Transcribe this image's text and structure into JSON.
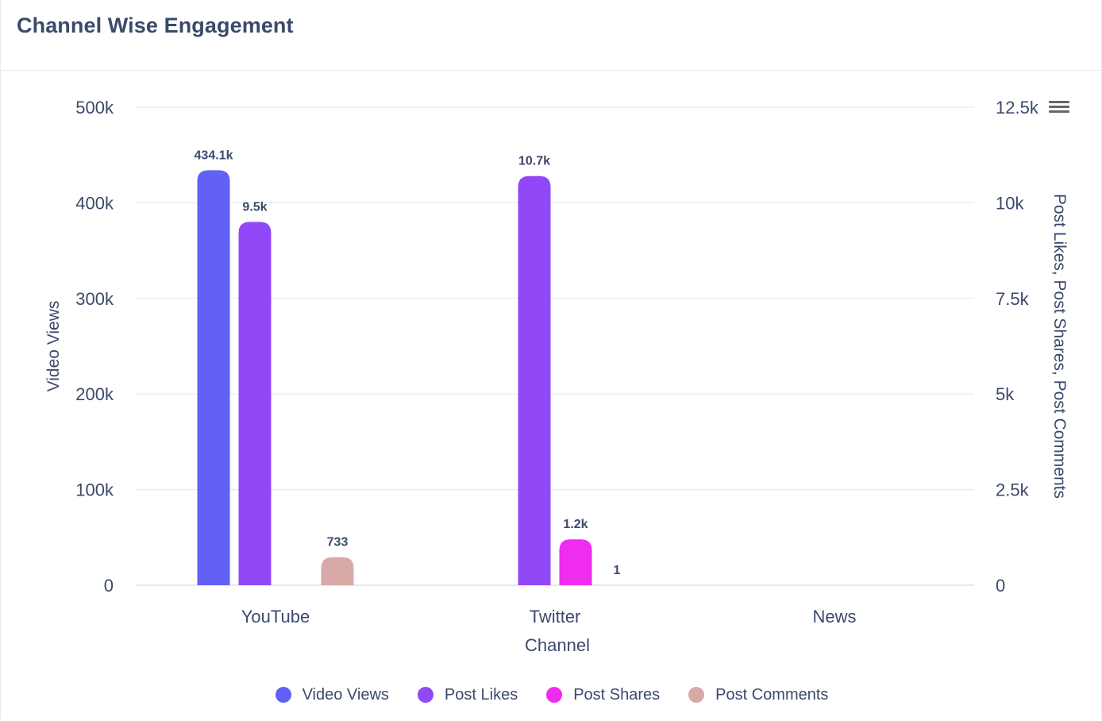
{
  "header": {
    "title": "Channel Wise Engagement"
  },
  "colors": {
    "video_views": "#6160f7",
    "post_likes": "#9148f6",
    "post_shares": "#ef2cf0",
    "post_comments": "#d8aaa7"
  },
  "toolbar": {
    "menu_icon": "hamburger-menu-icon"
  },
  "chart_data": {
    "type": "bar",
    "xlabel": "Channel",
    "ylabel_left": "Video Views",
    "ylabel_right": "Post Likes, Post Shares, Post Comments",
    "categories": [
      "YouTube",
      "Twitter",
      "News"
    ],
    "y_left": {
      "min": 0,
      "max": 500000,
      "ticks": [
        0,
        100000,
        200000,
        300000,
        400000,
        500000
      ],
      "tick_labels": [
        "0",
        "100k",
        "200k",
        "300k",
        "400k",
        "500k"
      ]
    },
    "y_right": {
      "min": 0,
      "max": 12500,
      "ticks": [
        0,
        2500,
        5000,
        7500,
        10000,
        12500
      ],
      "tick_labels": [
        "0",
        "2.5k",
        "5k",
        "7.5k",
        "10k",
        "12.5k"
      ]
    },
    "grid": true,
    "legend_position": "bottom",
    "series": [
      {
        "name": "Video Views",
        "axis": "left",
        "color": "#6160f7",
        "values": [
          434100,
          null,
          null
        ],
        "labels": [
          "434.1k",
          "",
          ""
        ]
      },
      {
        "name": "Post Likes",
        "axis": "right",
        "color": "#9148f6",
        "values": [
          9500,
          10700,
          null
        ],
        "labels": [
          "9.5k",
          "10.7k",
          ""
        ]
      },
      {
        "name": "Post Shares",
        "axis": "right",
        "color": "#ef2cf0",
        "values": [
          null,
          1200,
          null
        ],
        "labels": [
          "",
          "1.2k",
          ""
        ]
      },
      {
        "name": "Post Comments",
        "axis": "right",
        "color": "#d8aaa7",
        "values": [
          733,
          1,
          null
        ],
        "labels": [
          "733",
          "1",
          ""
        ]
      }
    ]
  }
}
